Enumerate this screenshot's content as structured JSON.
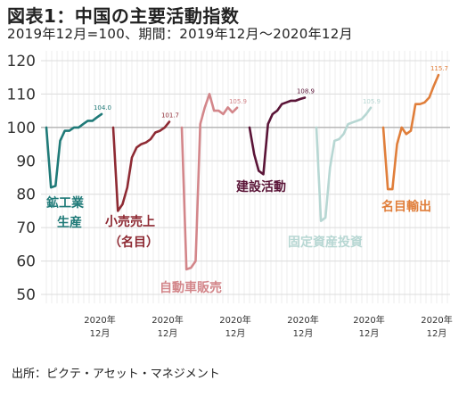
{
  "title": "図表1：中国の主要活動指数",
  "subtitle": "2019年12月=100、期間：2019年12月～2020年12月",
  "source": "出所：ピクテ・アセット・マネジメント",
  "chart_data": {
    "type": "line",
    "ylim": [
      50,
      120
    ],
    "yticks": [
      50,
      60,
      70,
      80,
      90,
      100,
      110,
      120
    ],
    "grid": true,
    "x_tick_year": "2020年",
    "x_tick_month": "12月",
    "series": [
      {
        "name": "鉱工業\n生産",
        "color": "#1f7a78",
        "end_label": "104.0",
        "values": [
          100,
          82,
          82.5,
          96,
          99,
          99,
          100,
          100,
          101,
          102,
          102,
          103,
          104
        ]
      },
      {
        "name": "小売売上\n（名目）",
        "color": "#8e2a33",
        "end_label": "101.7",
        "values": [
          100,
          75,
          77,
          82,
          91,
          94,
          95,
          95.5,
          96.5,
          98.5,
          99,
          100,
          101.7
        ]
      },
      {
        "name": "自動車販売",
        "color": "#d3868a",
        "end_label": "105.9",
        "values": [
          100,
          57.5,
          58,
          60,
          101,
          106,
          110,
          105,
          105,
          104,
          106,
          104.5,
          105.9
        ]
      },
      {
        "name": "建設活動",
        "color": "#5a1437",
        "end_label": "108.9",
        "values": [
          100,
          92,
          87,
          86,
          101,
          104,
          105,
          107,
          107.5,
          108,
          108,
          108.5,
          108.9
        ]
      },
      {
        "name": "固定資産投資",
        "color": "#b7d7d3",
        "end_label": "105.9",
        "values": [
          100,
          72,
          73,
          88,
          96,
          96.5,
          98,
          101,
          101.5,
          102,
          102.5,
          104,
          105.9
        ]
      },
      {
        "name": "名目輸出",
        "color": "#e07e3a",
        "end_label": "115.7",
        "values": [
          100,
          81.5,
          81.5,
          95,
          100,
          98,
          99,
          107,
          107,
          107.5,
          109,
          112.5,
          115.7
        ]
      }
    ]
  }
}
